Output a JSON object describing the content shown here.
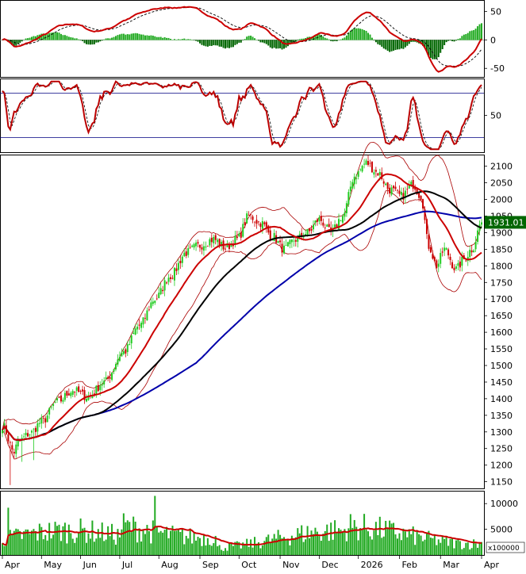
{
  "chart_data": {
    "type": "candlestick",
    "colors": {
      "up": "#22cc22",
      "down": "#cc0000",
      "ma_red": "#cc0000",
      "ma_black": "#000000",
      "ma_blue": "#0000aa",
      "band": "#aa0000",
      "volume": "#22aa22",
      "volume_ma": "#cc0000",
      "macd_hist_pos": "#22aa22",
      "macd_hist_neg": "#006600",
      "stoch_line": "#bb0000",
      "stoch_ref": "#000080",
      "last_price_bg": "#006600"
    },
    "x_labels": [
      "Apr",
      "May",
      "Jun",
      "Jul",
      "Aug",
      "Sep",
      "Oct",
      "Nov",
      "Dec",
      "2026",
      "Feb",
      "Mar",
      "Apr"
    ],
    "panels": {
      "macd": {
        "ylim": [
          -65,
          70
        ],
        "ticks": [
          50,
          0,
          -50
        ]
      },
      "stochastic": {
        "ylim": [
          0,
          100
        ],
        "ticks": [
          50
        ],
        "ref_lines": [
          80,
          20
        ]
      },
      "price": {
        "ylim": [
          1130,
          2135
        ],
        "ticks": [
          2100,
          2050,
          2000,
          1950,
          1900,
          1850,
          1800,
          1750,
          1700,
          1650,
          1600,
          1550,
          1500,
          1450,
          1400,
          1350,
          1300,
          1250,
          1200,
          1150
        ],
        "last_price": "1931.01",
        "last_value": 1931.01,
        "anchors": [
          [
            0,
            1320
          ],
          [
            6,
            1240
          ],
          [
            8,
            1270
          ],
          [
            14,
            1295
          ],
          [
            20,
            1330
          ],
          [
            28,
            1390
          ],
          [
            36,
            1425
          ],
          [
            44,
            1405
          ],
          [
            52,
            1450
          ],
          [
            62,
            1540
          ],
          [
            70,
            1620
          ],
          [
            78,
            1700
          ],
          [
            86,
            1770
          ],
          [
            94,
            1840
          ],
          [
            100,
            1860
          ],
          [
            108,
            1880
          ],
          [
            114,
            1855
          ],
          [
            120,
            1880
          ],
          [
            126,
            1950
          ],
          [
            132,
            1930
          ],
          [
            138,
            1890
          ],
          [
            144,
            1850
          ],
          [
            150,
            1880
          ],
          [
            156,
            1900
          ],
          [
            162,
            1940
          ],
          [
            168,
            1900
          ],
          [
            174,
            1950
          ],
          [
            180,
            2070
          ],
          [
            186,
            2110
          ],
          [
            192,
            2080
          ],
          [
            198,
            2030
          ],
          [
            204,
            2010
          ],
          [
            210,
            2045
          ],
          [
            214,
            2010
          ],
          [
            218,
            1860
          ],
          [
            222,
            1800
          ],
          [
            226,
            1850
          ],
          [
            232,
            1790
          ],
          [
            236,
            1820
          ],
          [
            240,
            1850
          ],
          [
            245,
            1931
          ]
        ]
      },
      "volume": {
        "ylim": [
          0,
          12500
        ],
        "ticks": [
          10000,
          5000
        ],
        "multiplier_label": "x100000"
      }
    }
  }
}
